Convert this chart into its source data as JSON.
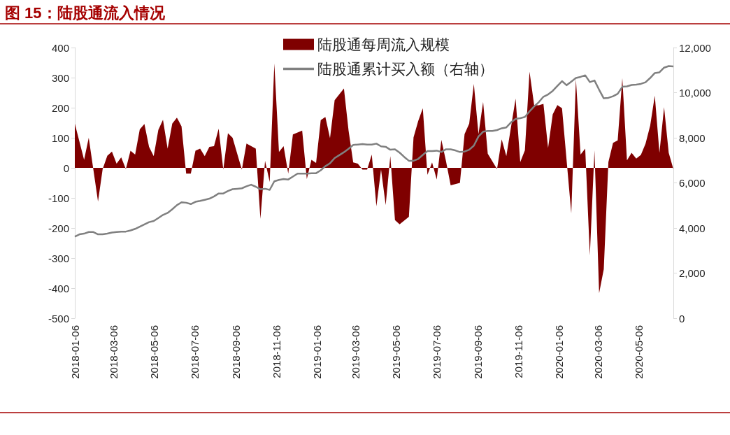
{
  "chart_data": {
    "type": "area",
    "title": "图 15：陆股通流入情况",
    "x": [
      "2018-01-06",
      "2018-01-13",
      "2018-01-20",
      "2018-01-27",
      "2018-02-03",
      "2018-02-10",
      "2018-02-17",
      "2018-02-24",
      "2018-03-03",
      "2018-03-10",
      "2018-03-17",
      "2018-03-24",
      "2018-03-31",
      "2018-04-07",
      "2018-04-14",
      "2018-04-21",
      "2018-04-28",
      "2018-05-05",
      "2018-05-12",
      "2018-05-19",
      "2018-05-26",
      "2018-06-02",
      "2018-06-09",
      "2018-06-16",
      "2018-06-23",
      "2018-06-30",
      "2018-07-07",
      "2018-07-14",
      "2018-07-21",
      "2018-07-28",
      "2018-08-04",
      "2018-08-11",
      "2018-08-18",
      "2018-08-25",
      "2018-09-01",
      "2018-09-08",
      "2018-09-15",
      "2018-09-22",
      "2018-09-29",
      "2018-10-06",
      "2018-10-13",
      "2018-10-20",
      "2018-10-27",
      "2018-11-03",
      "2018-11-10",
      "2018-11-17",
      "2018-11-24",
      "2018-12-01",
      "2018-12-08",
      "2018-12-15",
      "2018-12-22",
      "2018-12-29",
      "2019-01-05",
      "2019-01-12",
      "2019-01-19",
      "2019-01-26",
      "2019-02-02",
      "2019-02-09",
      "2019-02-16",
      "2019-02-23",
      "2019-03-02",
      "2019-03-09",
      "2019-03-16",
      "2019-03-23",
      "2019-03-30",
      "2019-04-06",
      "2019-04-13",
      "2019-04-20",
      "2019-04-27",
      "2019-05-04",
      "2019-05-11",
      "2019-05-18",
      "2019-05-25",
      "2019-06-01",
      "2019-06-08",
      "2019-06-15",
      "2019-06-22",
      "2019-06-29",
      "2019-07-06",
      "2019-07-13",
      "2019-07-20",
      "2019-07-27",
      "2019-08-03",
      "2019-08-10",
      "2019-08-17",
      "2019-08-24",
      "2019-08-31",
      "2019-09-07",
      "2019-09-14",
      "2019-09-21",
      "2019-09-28",
      "2019-10-05",
      "2019-10-12",
      "2019-10-19",
      "2019-10-26",
      "2019-11-02",
      "2019-11-09",
      "2019-11-16",
      "2019-11-23",
      "2019-11-30",
      "2019-12-07",
      "2019-12-14",
      "2019-12-21",
      "2019-12-28",
      "2020-01-04",
      "2020-01-11",
      "2020-01-18",
      "2020-01-25",
      "2020-02-01",
      "2020-02-08",
      "2020-02-15",
      "2020-02-22",
      "2020-02-29",
      "2020-03-07",
      "2020-03-14",
      "2020-03-21",
      "2020-03-28",
      "2020-04-04",
      "2020-04-11",
      "2020-04-18",
      "2020-04-25",
      "2020-05-02",
      "2020-05-09",
      "2020-05-16",
      "2020-05-23",
      "2020-05-30",
      "2020-06-06",
      "2020-06-13",
      "2020-06-20",
      "2020-06-27"
    ],
    "xlim": [
      "2018-01-06",
      "2020-06-27"
    ],
    "xticks": [
      "2018-01-06",
      "2018-03-06",
      "2018-05-06",
      "2018-07-06",
      "2018-09-06",
      "2018-11-06",
      "2019-01-06",
      "2019-03-06",
      "2019-05-06",
      "2019-07-06",
      "2019-09-06",
      "2019-11-06",
      "2020-01-06",
      "2020-03-06",
      "2020-05-06"
    ],
    "ylim": [
      -500,
      400
    ],
    "yticks": [
      -500,
      -400,
      -300,
      -200,
      -100,
      0,
      100,
      200,
      300,
      400
    ],
    "y2lim": [
      0,
      12000
    ],
    "y2ticks": [
      0,
      {
        "value": 2000,
        "label": "2,000"
      },
      {
        "value": 4000,
        "label": "4,000"
      },
      {
        "value": 6000,
        "label": "6,000"
      },
      {
        "value": 8000,
        "label": "8,000"
      },
      {
        "value": 10000,
        "label": "10,000"
      },
      {
        "value": 12000,
        "label": "12,000"
      }
    ],
    "legend": "top",
    "series": [
      {
        "name": "陆股通每周流入规模",
        "color": "#7f0000",
        "x": [
          "2018-01-06",
          "2018-01-20",
          "2018-01-27",
          "2018-02-10",
          "2018-02-17",
          "2018-02-24",
          "2018-03-03",
          "2018-03-10",
          "2018-03-17",
          "2018-03-24",
          "2018-03-31",
          "2018-04-07",
          "2018-04-14",
          "2018-04-21",
          "2018-04-28",
          "2018-05-05",
          "2018-05-12",
          "2018-05-19",
          "2018-05-26",
          "2018-06-02",
          "2018-06-09",
          "2018-06-16",
          "2018-06-23",
          "2018-06-30",
          "2018-07-07",
          "2018-07-14",
          "2018-07-21",
          "2018-07-28",
          "2018-08-04",
          "2018-08-11",
          "2018-08-18",
          "2018-08-25",
          "2018-09-01",
          "2018-09-15",
          "2018-09-22",
          "2018-10-06",
          "2018-10-13",
          "2018-10-20",
          "2018-10-27",
          "2018-11-03",
          "2018-11-10",
          "2018-11-17",
          "2018-11-24",
          "2018-12-01",
          "2018-12-15",
          "2018-12-22",
          "2018-12-29",
          "2019-01-05",
          "2019-01-12",
          "2019-01-19",
          "2019-01-26",
          "2019-02-02",
          "2019-02-16",
          "2019-02-23",
          "2019-03-02",
          "2019-03-09",
          "2019-03-16",
          "2019-03-23",
          "2019-03-30",
          "2019-04-06",
          "2019-04-13",
          "2019-04-20",
          "2019-04-27",
          "2019-05-04",
          "2019-05-11",
          "2019-05-25",
          "2019-06-01",
          "2019-06-08",
          "2019-06-15",
          "2019-06-22",
          "2019-06-29",
          "2019-07-06",
          "2019-07-13",
          "2019-07-20",
          "2019-07-27",
          "2019-08-10",
          "2019-08-17",
          "2019-08-24",
          "2019-08-31",
          "2019-09-07",
          "2019-09-14",
          "2019-09-21",
          "2019-10-05",
          "2019-10-12",
          "2019-10-19",
          "2019-11-02",
          "2019-11-09",
          "2019-11-16",
          "2019-11-23",
          "2019-11-30",
          "2019-12-07",
          "2019-12-14",
          "2019-12-21",
          "2019-12-28",
          "2020-01-04",
          "2020-01-11",
          "2020-01-25",
          "2020-02-01",
          "2020-02-08",
          "2020-02-15",
          "2020-02-22",
          "2020-02-29",
          "2020-03-07",
          "2020-03-14",
          "2020-03-21",
          "2020-03-28",
          "2020-04-04",
          "2020-04-11",
          "2020-04-18",
          "2020-04-25",
          "2020-05-02",
          "2020-05-09",
          "2020-05-16",
          "2020-05-23",
          "2020-05-30",
          "2020-06-06",
          "2020-06-13",
          "2020-06-20",
          "2020-06-27"
        ],
        "values": [
          147,
          27,
          100,
          -112,
          -4,
          40,
          54,
          14,
          35,
          -4,
          57,
          44,
          128,
          146,
          70,
          39,
          126,
          160,
          64,
          147,
          167,
          138,
          -19,
          -19,
          57,
          64,
          39,
          70,
          72,
          130,
          -6,
          115,
          100,
          -6,
          81,
          64,
          -170,
          23,
          -47,
          347,
          53,
          72,
          -19,
          111,
          124,
          -37,
          27,
          16,
          159,
          169,
          99,
          225,
          264,
          124,
          18,
          14,
          -6,
          -6,
          44,
          -128,
          -6,
          -124,
          39,
          -174,
          -188,
          -163,
          101,
          155,
          198,
          -23,
          18,
          -39,
          93,
          22,
          -58,
          -50,
          112,
          147,
          279,
          112,
          219,
          47,
          -4,
          95,
          39,
          230,
          19,
          58,
          320,
          208,
          208,
          213,
          66,
          178,
          209,
          198,
          -151,
          295,
          44,
          64,
          -291,
          58,
          -417,
          -337,
          19,
          83,
          91,
          298,
          25,
          50,
          31,
          43,
          80,
          140,
          240,
          50,
          202,
          50,
          -4
        ]
      },
      {
        "name": "陆股通累计买入额（右轴）",
        "type": "line",
        "axis": "y2",
        "color": "#808080",
        "values": [
          3620,
          3720,
          3750,
          3820,
          3820,
          3720,
          3720,
          3750,
          3800,
          3820,
          3840,
          3840,
          3890,
          3960,
          4060,
          4160,
          4260,
          4310,
          4440,
          4580,
          4670,
          4830,
          5010,
          5140,
          5120,
          5060,
          5160,
          5200,
          5250,
          5300,
          5400,
          5530,
          5530,
          5640,
          5720,
          5740,
          5760,
          5850,
          5920,
          5830,
          5720,
          5740,
          5690,
          6070,
          6130,
          6170,
          6150,
          6280,
          6410,
          6410,
          6410,
          6430,
          6430,
          6560,
          6740,
          6870,
          7100,
          7230,
          7360,
          7510,
          7680,
          7700,
          7720,
          7700,
          7700,
          7740,
          7620,
          7600,
          7470,
          7490,
          7340,
          7150,
          6980,
          6980,
          7060,
          7240,
          7410,
          7410,
          7430,
          7370,
          7490,
          7490,
          7440,
          7370,
          7390,
          7470,
          7650,
          8060,
          8270,
          8300,
          8300,
          8340,
          8420,
          8460,
          8680,
          8840,
          8870,
          8920,
          9170,
          9390,
          9580,
          9820,
          9920,
          10080,
          10300,
          10510,
          10330,
          10490,
          10650,
          10700,
          10770,
          10470,
          10540,
          10130,
          9750,
          9770,
          9840,
          9950,
          10260,
          10280,
          10340,
          10360,
          10390,
          10460,
          10650,
          10870,
          10900,
          11110,
          11180,
          11160
        ]
      }
    ]
  }
}
